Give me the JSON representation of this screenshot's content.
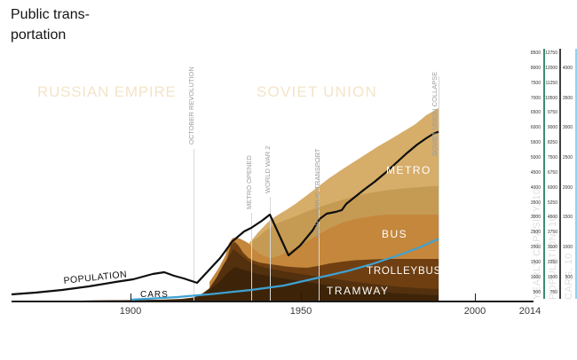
{
  "title_lines": "Public trans-\nportation",
  "eras": [
    {
      "label": "RUSSIAN EMPIRE"
    },
    {
      "label": "SOVIET UNION"
    }
  ],
  "events": [
    {
      "label": "OCTOBER REVOLUTION",
      "year": 1917
    },
    {
      "label": "METRO OPENED",
      "year": 1935
    },
    {
      "label": "WORLD WAR 2",
      "year": 1941
    },
    {
      "label": "NIGHT PUBLIC TRANSPORT",
      "year": 1955
    },
    {
      "label": "SOVIET UNION COLLAPSE",
      "year": 1991
    }
  ],
  "x_axis": {
    "tick_labels": [
      "1900",
      "1950",
      "2000",
      "2014"
    ]
  },
  "right_axes": [
    {
      "caption": "YEARLY CAPASITY, 10",
      "line_color": "#3c8e6e",
      "values": [
        "8500",
        "8000",
        "7500",
        "7000",
        "6500",
        "6000",
        "5500",
        "5000",
        "4500",
        "4000",
        "3500",
        "3000",
        "2500",
        "2000",
        "1500",
        "1000",
        "500"
      ]
    },
    {
      "caption": "POPULATION, 10",
      "line_color": "#3f3f3f",
      "values": [
        "12750",
        "12000",
        "11250",
        "10500",
        "9750",
        "9000",
        "8250",
        "7500",
        "6750",
        "6000",
        "5250",
        "4500",
        "3750",
        "3000",
        "2250",
        "1500",
        "750"
      ]
    },
    {
      "caption": "CARS, 10",
      "line_color": "#90d4f0",
      "values": [
        "4000",
        "3500",
        "3000",
        "2500",
        "2000",
        "1500",
        "1000",
        "500"
      ]
    }
  ],
  "series_labels": {
    "metro": "METRO",
    "bus": "BUS",
    "trolleybus": "TROLLEYBUS",
    "tramway": "TRAMWAY",
    "population": "POPULATION",
    "cars": "CARS"
  },
  "colors": {
    "metro_light": "#d6ad69",
    "metro_mid": "#c59b53",
    "bus": "#c4873c",
    "trolleybus": "#6f3f12",
    "tramway": "#53300e",
    "tram_base": "#3d2408",
    "population_line": "#0e0e0e",
    "cars_line": "#3ea2d4",
    "era_text": "#f4e4c8",
    "event_line": "#d8d8d8"
  },
  "chart_data": {
    "type": "area",
    "stacked": true,
    "title": "Public transportation",
    "x_years": [
      1900,
      1910,
      1917,
      1925,
      1930,
      1935,
      1940,
      1945,
      1950,
      1955,
      1960,
      1965,
      1970,
      1975,
      1980,
      1985,
      1990
    ],
    "series": [
      {
        "name": "TRAMWAY",
        "axis": "capacity",
        "values": [
          30,
          90,
          150,
          900,
          1600,
          1300,
          1100,
          1000,
          900,
          800,
          720,
          650,
          580,
          510,
          450,
          400,
          370
        ]
      },
      {
        "name": "TROLLEYBUS",
        "axis": "capacity",
        "values": [
          0,
          0,
          0,
          0,
          0,
          120,
          180,
          250,
          320,
          430,
          560,
          680,
          800,
          900,
          980,
          1020,
          1050
        ]
      },
      {
        "name": "BUS",
        "axis": "capacity",
        "values": [
          0,
          0,
          0,
          0,
          340,
          200,
          260,
          350,
          500,
          800,
          1150,
          1350,
          1500,
          1540,
          1550,
          1545,
          1540
        ]
      },
      {
        "name": "METRO",
        "axis": "capacity",
        "values": [
          0,
          0,
          0,
          0,
          0,
          100,
          500,
          700,
          900,
          1300,
          1900,
          2300,
          2800,
          3300,
          3800,
          4300,
          4700
        ]
      }
    ],
    "lines": [
      {
        "name": "POPULATION",
        "axis": "population",
        "values": [
          1050,
          1430,
          1500,
          2000,
          3050,
          3740,
          4400,
          2450,
          3100,
          4300,
          4800,
          5500,
          6150,
          6900,
          7600,
          8300,
          8750
        ]
      },
      {
        "name": "CARS",
        "axis": "cars",
        "values": [
          5,
          10,
          15,
          25,
          50,
          70,
          90,
          120,
          150,
          250,
          340,
          440,
          540,
          660,
          790,
          930,
          1060
        ]
      }
    ],
    "axes": {
      "x": {
        "ticks": [
          1900,
          1950,
          2000,
          2014
        ]
      },
      "capacity": {
        "label": "YEARLY CAPASITY, 10",
        "range": [
          0,
          8500
        ],
        "tick_step": 500
      },
      "population": {
        "label": "POPULATION, 10",
        "range": [
          0,
          12750
        ],
        "tick_step": 750
      },
      "cars": {
        "label": "CARS, 10",
        "range": [
          0,
          4000
        ],
        "tick_step": 500
      }
    },
    "events": [
      "OCTOBER REVOLUTION",
      "METRO OPENED",
      "WORLD WAR 2",
      "NIGHT PUBLIC TRANSPORT",
      "SOVIET UNION COLLAPSE"
    ],
    "eras": [
      "RUSSIAN EMPIRE",
      "SOVIET UNION"
    ]
  }
}
